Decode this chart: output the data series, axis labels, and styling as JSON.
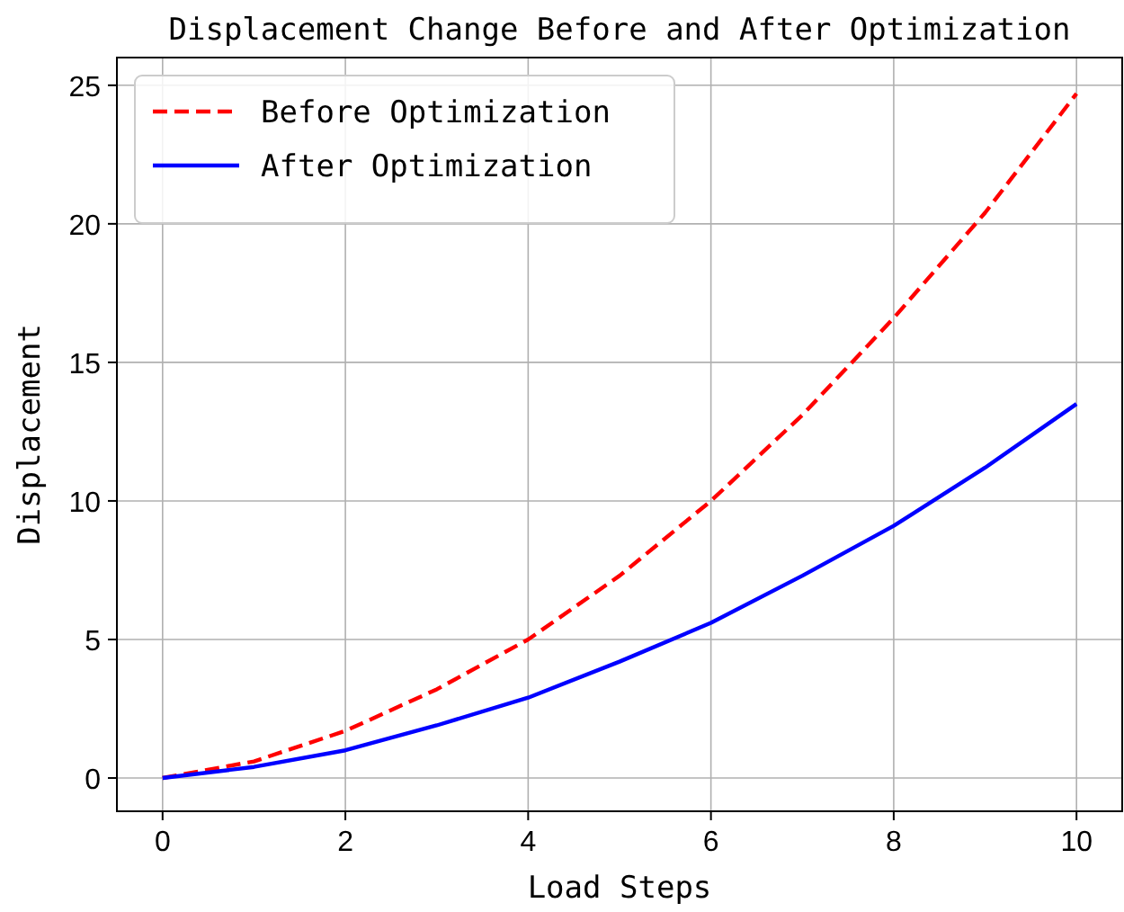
{
  "chart_data": {
    "type": "line",
    "title": "Displacement Change Before and After Optimization",
    "xlabel": "Load Steps",
    "ylabel": "Displacement",
    "x": [
      0,
      1,
      2,
      3,
      4,
      5,
      6,
      7,
      8,
      9,
      10
    ],
    "series": [
      {
        "name": "Before Optimization",
        "color": "#ff0000",
        "line_style": "dashed",
        "values": [
          0,
          0.6,
          1.7,
          3.2,
          5.0,
          7.3,
          10.0,
          13.1,
          16.6,
          20.4,
          24.7
        ]
      },
      {
        "name": "After Optimization",
        "color": "#0000ff",
        "line_style": "solid",
        "values": [
          0,
          0.4,
          1.0,
          1.9,
          2.9,
          4.2,
          5.6,
          7.3,
          9.1,
          11.2,
          13.5
        ]
      }
    ],
    "xlim": [
      -0.5,
      10.5
    ],
    "xticks": [
      0,
      2,
      4,
      6,
      8,
      10
    ],
    "ylim": [
      -1.2,
      26
    ],
    "yticks": [
      0,
      5,
      10,
      15,
      20,
      25
    ],
    "grid": true,
    "legend": "top left"
  }
}
